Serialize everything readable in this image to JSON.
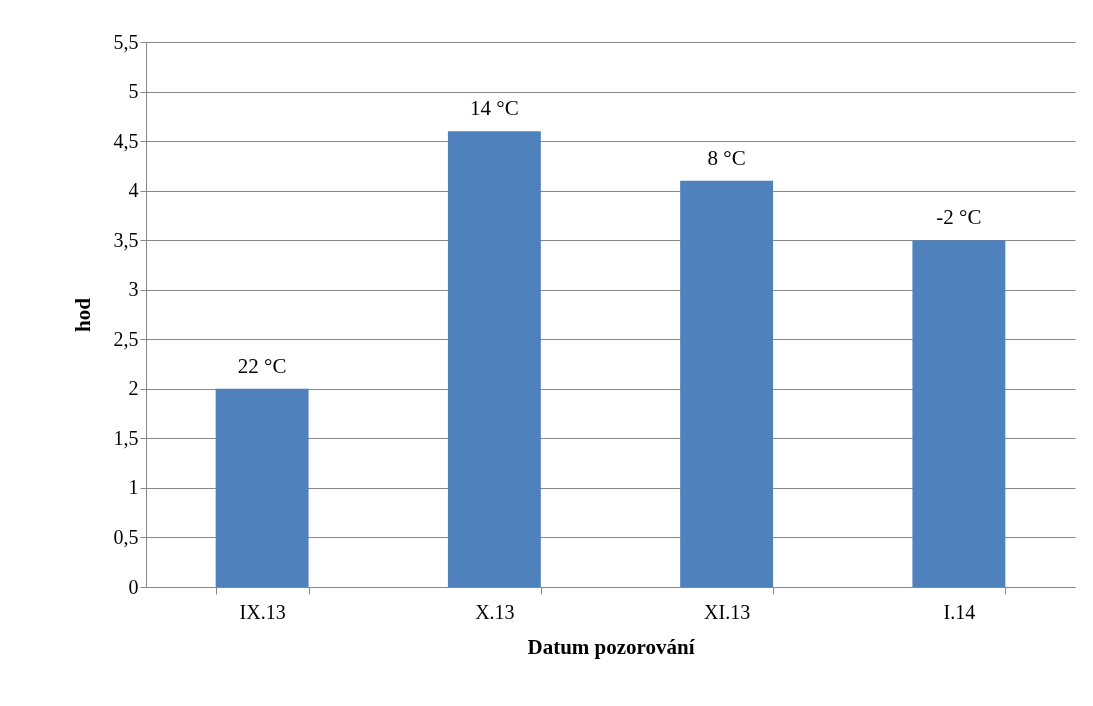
{
  "chart_data": {
    "type": "bar",
    "xlabel": "Datum pozorování",
    "ylabel": "hod",
    "categories": [
      "IX.13",
      "X.13",
      "XI.13",
      "I.14"
    ],
    "values": [
      2,
      4.6,
      4.1,
      3.5
    ],
    "annotations": [
      {
        "text": "22 °C",
        "x": "IX.13",
        "y": 2
      },
      {
        "text": "14 °C",
        "x": "X.13",
        "y": 4.6
      },
      {
        "text": "8 °C",
        "x": "XI.13",
        "y": 4.1
      },
      {
        "text": "-2 °C",
        "x": "I.14",
        "y": 3.5
      }
    ],
    "color": "#4f81bd",
    "ylim": [
      0,
      5.5
    ],
    "yticks": [
      0,
      {
        "value": 0.5,
        "label": "0,5"
      },
      1,
      {
        "value": 1.5,
        "label": "1,5"
      },
      2,
      {
        "value": 2.5,
        "label": "2,5"
      },
      3,
      {
        "value": 3.5,
        "label": "3,5"
      },
      4,
      {
        "value": 4.5,
        "label": "4,5"
      },
      5,
      {
        "value": 5.5,
        "label": "5,5"
      }
    ],
    "grid": "y"
  }
}
